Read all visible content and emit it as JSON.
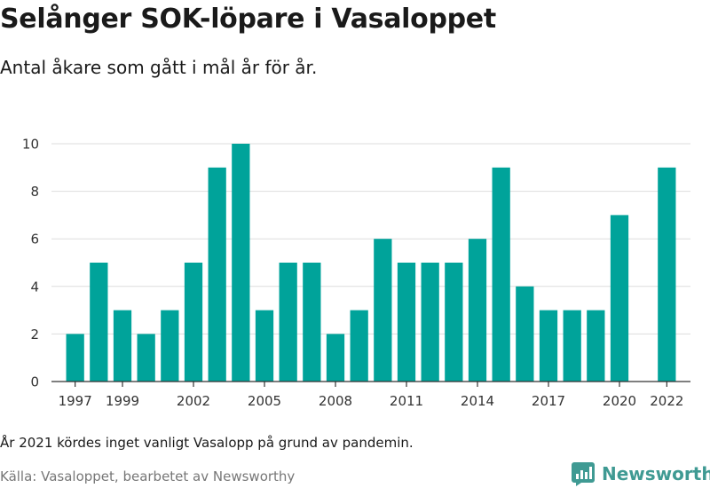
{
  "header": {
    "title": "Selånger SOK-löpare i Vasaloppet",
    "subtitle": "Antal åkare som gått i mål år för år."
  },
  "footer": {
    "note": "År 2021 kördes inget vanligt Vasalopp på grund av pandemin.",
    "source": "Källa: Vasaloppet, bearbetet av Newsworthy",
    "brand": "Newsworthy"
  },
  "colors": {
    "bar": "#00a39a",
    "grid": "#dddddd",
    "axis": "#333333",
    "brand": "#3f9a93"
  },
  "chart_data": {
    "type": "bar",
    "x": [
      1997,
      1998,
      1999,
      2000,
      2001,
      2002,
      2003,
      2004,
      2005,
      2006,
      2007,
      2008,
      2009,
      2010,
      2011,
      2012,
      2013,
      2014,
      2015,
      2016,
      2017,
      2018,
      2019,
      2020,
      2022
    ],
    "values": [
      2,
      5,
      3,
      2,
      3,
      5,
      9,
      10,
      3,
      5,
      5,
      2,
      3,
      6,
      5,
      5,
      5,
      6,
      9,
      4,
      3,
      3,
      3,
      7,
      9
    ],
    "x_tick_labels": [
      "1997",
      "1999",
      "2002",
      "2005",
      "2008",
      "2011",
      "2014",
      "2017",
      "2020",
      "2022"
    ],
    "xlim": [
      1996,
      2023
    ],
    "ylim": [
      0,
      10
    ],
    "y_ticks": [
      0,
      2,
      4,
      6,
      8,
      10
    ],
    "grid": true,
    "legend": "none"
  }
}
